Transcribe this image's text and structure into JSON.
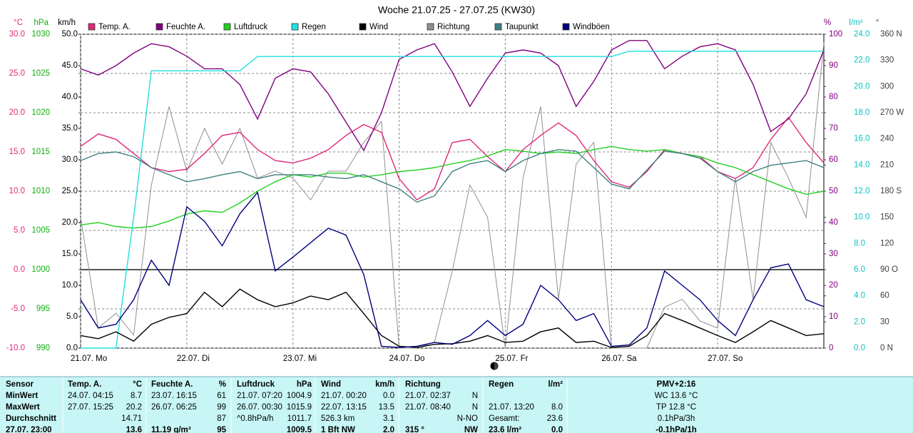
{
  "chart_data": {
    "type": "line",
    "title": "Woche 21.07.25 - 27.07.25 (KW30)",
    "xlim": [
      0,
      168
    ],
    "x": [
      0,
      4,
      8,
      12,
      16,
      20,
      24,
      28,
      32,
      36,
      40,
      44,
      48,
      52,
      56,
      60,
      64,
      68,
      72,
      76,
      80,
      84,
      88,
      92,
      96,
      100,
      104,
      108,
      112,
      116,
      120,
      124,
      128,
      132,
      136,
      140,
      144,
      148,
      152,
      156,
      160,
      164,
      168
    ],
    "xticks": [
      {
        "value": 0,
        "label": "21.07. Mo"
      },
      {
        "value": 24,
        "label": "22.07. Di"
      },
      {
        "value": 48,
        "label": "23.07. Mi"
      },
      {
        "value": 72,
        "label": "24.07. Do"
      },
      {
        "value": 96,
        "label": "25.07. Fr"
      },
      {
        "value": 120,
        "label": "26.07. Sa"
      },
      {
        "value": 144,
        "label": "27.07. So"
      }
    ],
    "grid": true,
    "axes": [
      {
        "unit": "°C",
        "color": "#e0287a",
        "lim": [
          -10,
          30
        ],
        "ticks": [
          {
            "value": 30,
            "label": "30.0"
          },
          {
            "value": 25,
            "label": "25.0"
          },
          {
            "value": 20,
            "label": "20.0"
          },
          {
            "value": 15,
            "label": "15.0"
          },
          {
            "value": 10,
            "label": "10.0"
          },
          {
            "value": 5,
            "label": "5.0"
          },
          {
            "value": 0,
            "label": "0.0"
          },
          {
            "value": -5,
            "label": "-5.0"
          },
          {
            "value": -10,
            "label": "-10.0"
          }
        ]
      },
      {
        "unit": "hPa",
        "color": "#10b010",
        "lim": [
          990,
          1030
        ],
        "ticks": [
          1030,
          1025,
          1020,
          1015,
          1010,
          1005,
          1000,
          995,
          990
        ]
      },
      {
        "unit": "km/h",
        "color": "#000000",
        "lim": [
          0,
          50
        ],
        "ticks": [
          {
            "value": 50,
            "label": "50.0"
          },
          {
            "value": 45,
            "label": "45.0"
          },
          {
            "value": 40,
            "label": "40.0"
          },
          {
            "value": 35,
            "label": "35.0"
          },
          {
            "value": 30,
            "label": "30.0"
          },
          {
            "value": 25,
            "label": "25.0"
          },
          {
            "value": 20,
            "label": "20.0"
          },
          {
            "value": 15,
            "label": "15.0"
          },
          {
            "value": 10,
            "label": "10.0"
          },
          {
            "value": 5,
            "label": "5.0"
          },
          {
            "value": 0,
            "label": "0.0"
          }
        ]
      },
      {
        "unit": "%",
        "color": "#800080",
        "lim": [
          0,
          100
        ],
        "ticks": [
          100,
          90,
          80,
          70,
          60,
          50,
          40,
          30,
          20,
          10,
          0
        ]
      },
      {
        "unit": "l/m²",
        "color": "#10c0c0",
        "lim": [
          0,
          24
        ],
        "ticks": [
          {
            "value": 24,
            "label": "24.0"
          },
          {
            "value": 22,
            "label": "22.0"
          },
          {
            "value": 20,
            "label": "20.0"
          },
          {
            "value": 18,
            "label": "18.0"
          },
          {
            "value": 16,
            "label": "16.0"
          },
          {
            "value": 14,
            "label": "14.0"
          },
          {
            "value": 12,
            "label": "12.0"
          },
          {
            "value": 10,
            "label": "10.0"
          },
          {
            "value": 8,
            "label": "8.0"
          },
          {
            "value": 6,
            "label": "6.0"
          },
          {
            "value": 4,
            "label": "4.0"
          },
          {
            "value": 2,
            "label": "2.0"
          },
          {
            "value": 0,
            "label": "0.0"
          }
        ]
      },
      {
        "unit": "°",
        "color": "#404040",
        "lim": [
          0,
          360
        ],
        "ticks": [
          {
            "value": 360,
            "label": "360 N"
          },
          330,
          300,
          {
            "value": 270,
            "label": "270 W"
          },
          240,
          210,
          {
            "value": 180,
            "label": "180 S"
          },
          150,
          120,
          {
            "value": 90,
            "label": "90 O"
          },
          60,
          30,
          {
            "value": 0,
            "label": "0 N"
          }
        ]
      }
    ],
    "series": [
      {
        "name": "Temp. A.",
        "color": "#e0287a",
        "axis": 0,
        "values": [
          15.7,
          17.3,
          16.6,
          14.8,
          13.0,
          12.5,
          12.8,
          14.8,
          17.1,
          17.5,
          15.3,
          13.9,
          13.6,
          14.2,
          15.3,
          17.1,
          18.5,
          17.5,
          11.6,
          8.9,
          10.3,
          16.2,
          16.6,
          14.4,
          12.5,
          15.3,
          17.1,
          18.7,
          17.1,
          13.9,
          11.2,
          10.5,
          12.5,
          15.3,
          14.8,
          14.4,
          12.5,
          11.6,
          13.0,
          16.6,
          19.4,
          16.2,
          13.6
        ]
      },
      {
        "name": "Feuchte A.",
        "color": "#800080",
        "axis": 3,
        "values": [
          89,
          87,
          90,
          94,
          97,
          96,
          93,
          89,
          89,
          84,
          73,
          86,
          89,
          88,
          81,
          72,
          63,
          75,
          92,
          95,
          97,
          88,
          77,
          86,
          94,
          95,
          94,
          90,
          77,
          85,
          95,
          98,
          98,
          89,
          93,
          96,
          97,
          95,
          84,
          69,
          73,
          81,
          95
        ]
      },
      {
        "name": "Luftdruck",
        "color": "#20d020",
        "axis": 1,
        "values": [
          1005.7,
          1006.0,
          1005.5,
          1005.3,
          1005.5,
          1006.2,
          1007.1,
          1007.5,
          1007.3,
          1008.5,
          1010.0,
          1011.2,
          1012.1,
          1011.8,
          1012.3,
          1012.3,
          1011.8,
          1012.1,
          1012.5,
          1012.7,
          1013.0,
          1013.5,
          1013.9,
          1014.5,
          1015.3,
          1015.1,
          1014.8,
          1015.0,
          1014.8,
          1015.3,
          1015.7,
          1015.3,
          1015.1,
          1015.3,
          1014.8,
          1014.4,
          1013.6,
          1013.0,
          1012.1,
          1011.2,
          1010.3,
          1009.6,
          1010.0
        ]
      },
      {
        "name": "Regen",
        "color": "#20e0e0",
        "axis": 4,
        "values": [
          0,
          0,
          0,
          10.0,
          21.2,
          21.2,
          21.2,
          21.2,
          21.2,
          21.2,
          22.3,
          22.3,
          22.3,
          22.3,
          22.3,
          22.3,
          22.3,
          22.3,
          22.3,
          22.3,
          22.3,
          22.3,
          22.3,
          22.3,
          22.3,
          22.3,
          22.3,
          22.3,
          22.3,
          22.3,
          22.3,
          22.7,
          22.7,
          22.7,
          22.7,
          22.7,
          22.7,
          22.7,
          22.7,
          22.7,
          22.7,
          22.7,
          22.7
        ]
      },
      {
        "name": "Wind",
        "color": "#000000",
        "axis": 2,
        "values": [
          2.0,
          1.5,
          2.6,
          1.1,
          3.8,
          4.9,
          5.5,
          8.9,
          6.6,
          9.4,
          7.7,
          6.6,
          7.2,
          8.3,
          7.7,
          8.9,
          5.5,
          2.0,
          0.3,
          0.1,
          0.6,
          0.7,
          1.1,
          2.0,
          0.9,
          1.1,
          2.6,
          3.2,
          0.9,
          1.1,
          0.1,
          0.3,
          2.0,
          5.5,
          4.4,
          3.2,
          2.0,
          0.9,
          2.6,
          4.4,
          3.2,
          2.0,
          2.3
        ]
      },
      {
        "name": "Richtung",
        "color": "#909090",
        "axis": 5,
        "values": [
          150,
          23,
          40,
          15,
          187,
          277,
          203,
          252,
          211,
          252,
          195,
          203,
          195,
          170,
          203,
          203,
          236,
          260,
          0,
          0,
          7,
          88,
          187,
          150,
          0,
          195,
          277,
          56,
          211,
          236,
          0,
          0,
          0,
          47,
          56,
          31,
          23,
          195,
          56,
          236,
          195,
          150,
          350
        ]
      },
      {
        "name": "Taupunkt",
        "color": "#408080",
        "axis": 0,
        "values": [
          13.9,
          14.8,
          15.0,
          14.4,
          13.0,
          12.1,
          11.2,
          11.6,
          12.1,
          12.5,
          11.6,
          12.1,
          12.1,
          12.1,
          11.8,
          11.6,
          12.1,
          11.2,
          10.3,
          8.6,
          9.4,
          12.5,
          13.5,
          13.9,
          12.5,
          13.9,
          14.8,
          15.3,
          15.1,
          13.0,
          10.9,
          10.3,
          12.7,
          15.1,
          14.8,
          14.2,
          12.5,
          11.2,
          12.5,
          13.3,
          13.6,
          13.9,
          13.0
        ]
      },
      {
        "name": "Windböen",
        "color": "#000080",
        "axis": 2,
        "values": [
          7.7,
          3.2,
          3.8,
          7.7,
          14.0,
          10.0,
          22.5,
          20.2,
          16.3,
          21.4,
          24.8,
          12.3,
          14.5,
          16.8,
          19.1,
          18.0,
          11.7,
          0.3,
          0.1,
          0.3,
          0.9,
          0.6,
          2.0,
          4.4,
          2.0,
          3.8,
          10.0,
          7.7,
          4.4,
          5.5,
          0.3,
          0.5,
          3.2,
          12.3,
          10.0,
          7.7,
          4.4,
          2.0,
          7.7,
          12.8,
          13.4,
          7.7,
          6.6
        ]
      }
    ]
  },
  "table": {
    "header": {
      "label": "Sensor",
      "cells": [
        {
          "l": "Temp. A.",
          "r": "°C"
        },
        {
          "l": "Feuchte A.",
          "r": "%"
        },
        {
          "l": "Luftdruck",
          "r": "hPa"
        },
        {
          "l": "Wind",
          "r": "km/h"
        },
        {
          "l": "Richtung"
        },
        {
          "l": "Regen",
          "r": "l/m²"
        }
      ],
      "pmv": "PMV+2:16"
    },
    "rows": [
      {
        "label": "MinWert",
        "cells": [
          {
            "l": "24.07.  04:15",
            "r": "8.7"
          },
          {
            "l": "23.07.  16:15",
            "r": "61"
          },
          {
            "l": "21.07.  07:20",
            "r": "1004.9"
          },
          {
            "l": "21.07.  00:20",
            "r": "0.0"
          },
          {
            "l": "21.07.  02:37",
            "r": "N"
          },
          {}
        ],
        "pmv": "WC 13.6 °C"
      },
      {
        "label": "MaxWert",
        "cells": [
          {
            "l": "27.07.  15:25",
            "r": "20.2"
          },
          {
            "l": "26.07.  06:25",
            "r": "99"
          },
          {
            "l": "26.07.  00:30",
            "r": "1015.9"
          },
          {
            "l": "22.07.  13:15",
            "r": "13.5"
          },
          {
            "l": "21.07.  08:40",
            "r": "N"
          },
          {
            "l": "21.07.  13:20",
            "r": "8.0"
          }
        ],
        "pmv": "TP 12.8 °C"
      },
      {
        "label": "Durchschnitt",
        "cells": [
          {
            "r": "14.71"
          },
          {
            "r": "87"
          },
          {
            "l": "^0.8hPa/h",
            "r": "1011.7"
          },
          {
            "l": "526.3 km",
            "r": "3.1"
          },
          {
            "r": "N-NO"
          },
          {
            "l": "Gesamt:",
            "r": "23.6"
          }
        ],
        "pmv": "0.1hPa/3h"
      },
      {
        "label": "27.07. 23:00",
        "cells": [
          {
            "r": "13.6"
          },
          {
            "l": "11.19 g/m³",
            "r": "95"
          },
          {
            "r": "1009.5"
          },
          {
            "l": "1 Bft NW",
            "r": "2.0"
          },
          {
            "l": "315 °",
            "r": "NW"
          },
          {
            "l": "23.6 l/m²",
            "r": "0.0"
          }
        ],
        "pmv": "-0.1hPa/1h"
      }
    ]
  }
}
